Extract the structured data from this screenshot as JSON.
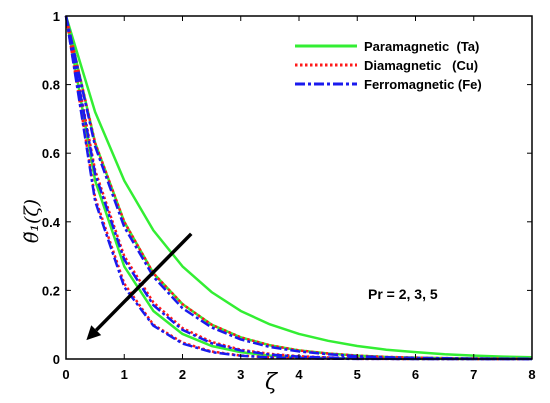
{
  "chart_data": {
    "type": "line",
    "xlabel": "ζ",
    "ylabel": "θ̃₁(ζ)",
    "xlim": [
      0,
      8
    ],
    "ylim": [
      0,
      1
    ],
    "xticks": [
      0,
      1,
      2,
      3,
      4,
      5,
      6,
      7,
      8
    ],
    "yticks": [
      0,
      0.2,
      0.4,
      0.6,
      0.8,
      1
    ],
    "grid": false,
    "legend_position": "top-right",
    "annotation": "Pr = 2, 3, 5",
    "arrow": {
      "from": [
        2.15,
        0.365
      ],
      "to": [
        0.35,
        0.055
      ],
      "meaning": "increasing Pr"
    },
    "x": [
      0,
      0.5,
      1,
      1.5,
      2,
      2.5,
      3,
      3.5,
      4,
      4.5,
      5,
      5.5,
      6,
      6.5,
      7,
      7.5,
      8
    ],
    "series": [
      {
        "name": "Paramagnetic (Ta)",
        "color": "#33ee33",
        "style": "solid",
        "Pr": 2,
        "values": [
          1.0,
          0.72,
          0.52,
          0.375,
          0.27,
          0.195,
          0.14,
          0.101,
          0.073,
          0.053,
          0.038,
          0.027,
          0.02,
          0.014,
          0.01,
          0.007,
          0.005
        ]
      },
      {
        "name": "Paramagnetic (Ta)",
        "color": "#33ee33",
        "style": "solid",
        "Pr": 3,
        "values": [
          1.0,
          0.63,
          0.4,
          0.25,
          0.16,
          0.1,
          0.063,
          0.04,
          0.025,
          0.016,
          0.01,
          0.006,
          0.004,
          0.0025,
          0.0016,
          0.001,
          0.0006
        ]
      },
      {
        "name": "Paramagnetic (Ta)",
        "color": "#33ee33",
        "style": "solid",
        "Pr": 5,
        "values": [
          1.0,
          0.52,
          0.27,
          0.14,
          0.073,
          0.038,
          0.02,
          0.01,
          0.005,
          0.003,
          0.0014,
          0.0007,
          0.0004,
          0.0002,
          0.0001,
          5e-05,
          3e-05
        ]
      },
      {
        "name": "Diamagnetic (Cu)",
        "color": "#ff1a1a",
        "style": "dotted",
        "Pr": 2,
        "values": [
          1.0,
          0.63,
          0.4,
          0.25,
          0.16,
          0.1,
          0.063,
          0.04,
          0.025,
          0.016,
          0.01,
          0.006,
          0.004,
          0.0025,
          0.0016,
          0.001,
          0.0006
        ]
      },
      {
        "name": "Diamagnetic (Cu)",
        "color": "#ff1a1a",
        "style": "dotted",
        "Pr": 3,
        "values": [
          1.0,
          0.55,
          0.3,
          0.165,
          0.09,
          0.05,
          0.027,
          0.015,
          0.008,
          0.0045,
          0.0025,
          0.0014,
          0.0008,
          0.0004,
          0.0002,
          0.0001,
          7e-05
        ]
      },
      {
        "name": "Diamagnetic (Cu)",
        "color": "#ff1a1a",
        "style": "dotted",
        "Pr": 5,
        "values": [
          1.0,
          0.47,
          0.22,
          0.1,
          0.048,
          0.022,
          0.01,
          0.005,
          0.0022,
          0.001,
          0.0005,
          0.0002,
          0.0001,
          5e-05,
          2e-05,
          1e-05,
          5e-06
        ]
      },
      {
        "name": "Ferromagnetic (Fe)",
        "color": "#1a1aee",
        "style": "dashdot",
        "Pr": 2,
        "values": [
          1.0,
          0.62,
          0.385,
          0.24,
          0.148,
          0.092,
          0.057,
          0.035,
          0.022,
          0.014,
          0.008,
          0.005,
          0.003,
          0.002,
          0.0012,
          0.0008,
          0.0005
        ]
      },
      {
        "name": "Ferromagnetic (Fe)",
        "color": "#1a1aee",
        "style": "dashdot",
        "Pr": 3,
        "values": [
          1.0,
          0.54,
          0.29,
          0.157,
          0.085,
          0.046,
          0.025,
          0.013,
          0.007,
          0.004,
          0.002,
          0.0011,
          0.0006,
          0.0003,
          0.0002,
          0.0001,
          5e-05
        ]
      },
      {
        "name": "Ferromagnetic (Fe)",
        "color": "#1a1aee",
        "style": "dashdot",
        "Pr": 5,
        "values": [
          1.0,
          0.46,
          0.21,
          0.097,
          0.045,
          0.02,
          0.0095,
          0.0044,
          0.002,
          0.0009,
          0.0004,
          0.0002,
          0.0001,
          4e-05,
          2e-05,
          1e-05,
          4e-06
        ]
      }
    ],
    "legend": [
      {
        "label": "Paramagnetic  (Ta)",
        "color": "#33ee33",
        "style": "solid"
      },
      {
        "label": "Diamagnetic   (Cu)",
        "color": "#ff1a1a",
        "style": "dotted"
      },
      {
        "label": "Ferromagnetic (Fe)",
        "color": "#1a1aee",
        "style": "dashdot"
      }
    ]
  }
}
